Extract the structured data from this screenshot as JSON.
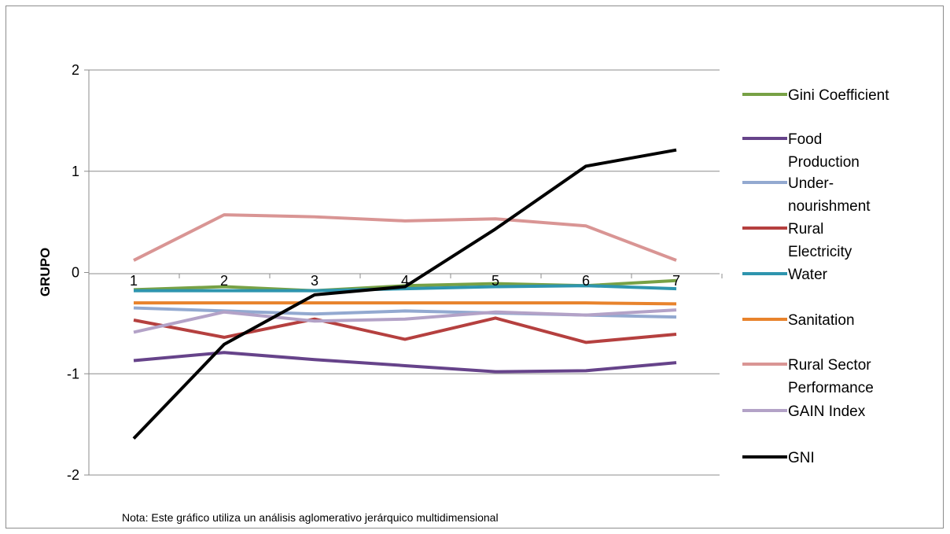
{
  "chart_data": {
    "type": "line",
    "title": "",
    "xlabel": "",
    "ylabel": "GRUPO",
    "note": "Nota: Este gráfico utiliza un análisis aglomerativo jerárquico multidimensional",
    "x": [
      1,
      2,
      3,
      4,
      5,
      6,
      7
    ],
    "x_tick_labels": [
      "1",
      "2",
      "3",
      "4",
      "5",
      "6",
      "7"
    ],
    "y_ticks": [
      -2,
      -1,
      0,
      1,
      2
    ],
    "ylim": [
      -2,
      2
    ],
    "grid": "horizontal",
    "legend_position": "right",
    "series": [
      {
        "name": "Gini Coefficient",
        "legend_lines": [
          "Gini Coefficient"
        ],
        "color": "#77a145",
        "values": [
          -0.17,
          -0.14,
          -0.18,
          -0.13,
          -0.11,
          -0.13,
          -0.08
        ]
      },
      {
        "name": "Food Production",
        "legend_lines": [
          "Food",
          "Production"
        ],
        "color": "#66438a",
        "values": [
          -0.87,
          -0.79,
          -0.86,
          -0.92,
          -0.98,
          -0.97,
          -0.89
        ]
      },
      {
        "name": "Under-nourishment",
        "legend_lines": [
          "Under-",
          "nourishment"
        ],
        "color": "#93a9d0",
        "values": [
          -0.35,
          -0.38,
          -0.41,
          -0.38,
          -0.4,
          -0.42,
          -0.44
        ]
      },
      {
        "name": "Rural Electricity",
        "legend_lines": [
          "Rural",
          "Electricity"
        ],
        "color": "#b5403f",
        "values": [
          -0.47,
          -0.64,
          -0.46,
          -0.66,
          -0.45,
          -0.69,
          -0.61
        ]
      },
      {
        "name": "Water",
        "legend_lines": [
          "Water"
        ],
        "color": "#2e95ae",
        "values": [
          -0.18,
          -0.18,
          -0.18,
          -0.16,
          -0.14,
          -0.13,
          -0.16
        ]
      },
      {
        "name": "Sanitation",
        "legend_lines": [
          "Sanitation"
        ],
        "color": "#e8832c",
        "values": [
          -0.3,
          -0.3,
          -0.3,
          -0.3,
          -0.3,
          -0.3,
          -0.31
        ]
      },
      {
        "name": "Rural Sector Performance",
        "legend_lines": [
          "Rural Sector",
          "Performance"
        ],
        "color": "#d99594",
        "values": [
          0.12,
          0.57,
          0.55,
          0.51,
          0.53,
          0.46,
          0.12
        ]
      },
      {
        "name": "GAIN Index",
        "legend_lines": [
          "GAIN Index"
        ],
        "color": "#b3a2c7",
        "values": [
          -0.59,
          -0.39,
          -0.48,
          -0.46,
          -0.39,
          -0.42,
          -0.37
        ]
      },
      {
        "name": "GNI",
        "legend_lines": [
          "GNI"
        ],
        "color": "#000000",
        "values": [
          -1.64,
          -0.71,
          -0.22,
          -0.14,
          0.43,
          1.05,
          1.21
        ]
      }
    ]
  }
}
